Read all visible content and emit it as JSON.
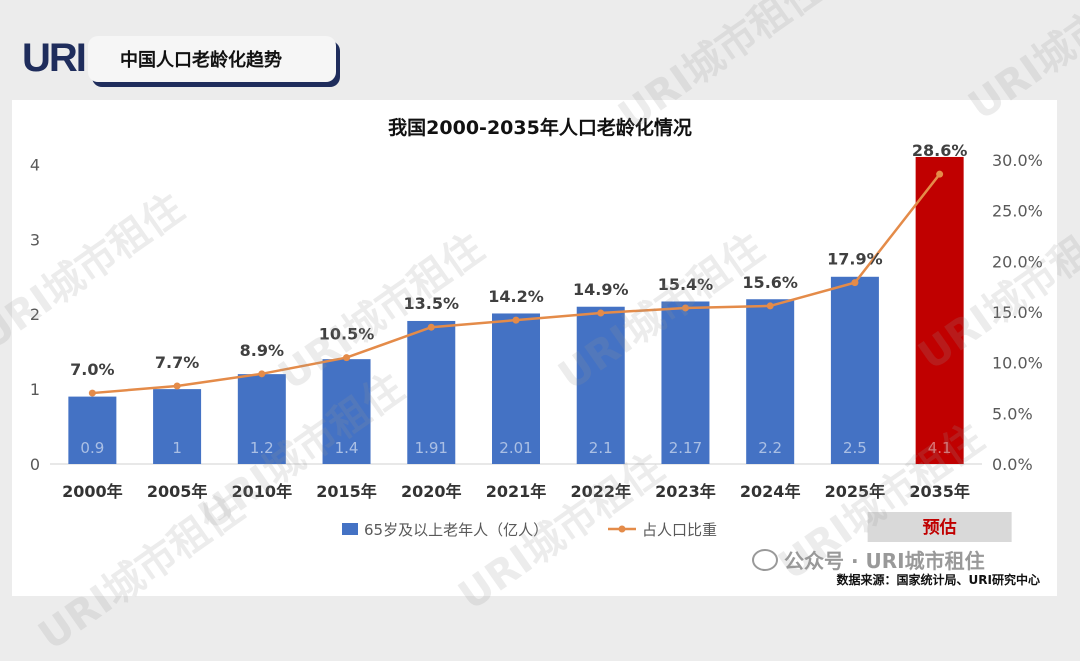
{
  "logo": "URI",
  "header_title": "中国人口老龄化趋势",
  "watermark_text": "URI城市租住",
  "source": "数据来源：国家统计局、URI研究中心",
  "wechat": "公众号 · URI城市租住",
  "forecast_label": "预估",
  "colors": {
    "bar": "#4472c4",
    "bar_forecast": "#c00000",
    "line": "#e48b49",
    "forecast_box": "#d9d9d9"
  },
  "chart_data": {
    "type": "bar",
    "title": "我国2000-2035年人口老龄化情况",
    "categories": [
      "2000年",
      "2005年",
      "2010年",
      "2015年",
      "2020年",
      "2021年",
      "2022年",
      "2023年",
      "2024年",
      "2025年",
      "2035年"
    ],
    "series": [
      {
        "name": "65岁及以上老年人（亿人）",
        "type": "bar",
        "axis": "left",
        "values": [
          0.9,
          1,
          1.2,
          1.4,
          1.91,
          2.01,
          2.1,
          2.17,
          2.2,
          2.5,
          4.1
        ],
        "labels": [
          "0.9",
          "1",
          "1.2",
          "1.4",
          "1.91",
          "2.01",
          "2.1",
          "2.17",
          "2.2",
          "2.5",
          "4.1"
        ]
      },
      {
        "name": "占人口比重",
        "type": "line",
        "axis": "right",
        "values": [
          7.0,
          7.7,
          8.9,
          10.5,
          13.5,
          14.2,
          14.9,
          15.4,
          15.6,
          17.9,
          28.6
        ],
        "labels": [
          "7.0%",
          "7.7%",
          "8.9%",
          "10.5%",
          "13.5%",
          "14.2%",
          "14.9%",
          "15.4%",
          "15.6%",
          "17.9%",
          "28.6%"
        ]
      }
    ],
    "forecast_index": 10,
    "y_left": {
      "range": [
        0,
        4.5
      ],
      "ticks": [
        "0",
        "1",
        "2",
        "3",
        "4"
      ],
      "tick_values": [
        0,
        1,
        2,
        3,
        4
      ]
    },
    "y_right": {
      "range": [
        0,
        30
      ],
      "ticks": [
        "0.0%",
        "5.0%",
        "10.0%",
        "15.0%",
        "20.0%",
        "25.0%",
        "30.0%"
      ],
      "tick_values": [
        0,
        5,
        10,
        15,
        20,
        25,
        30
      ]
    },
    "legend_position": "bottom",
    "grid": false
  }
}
